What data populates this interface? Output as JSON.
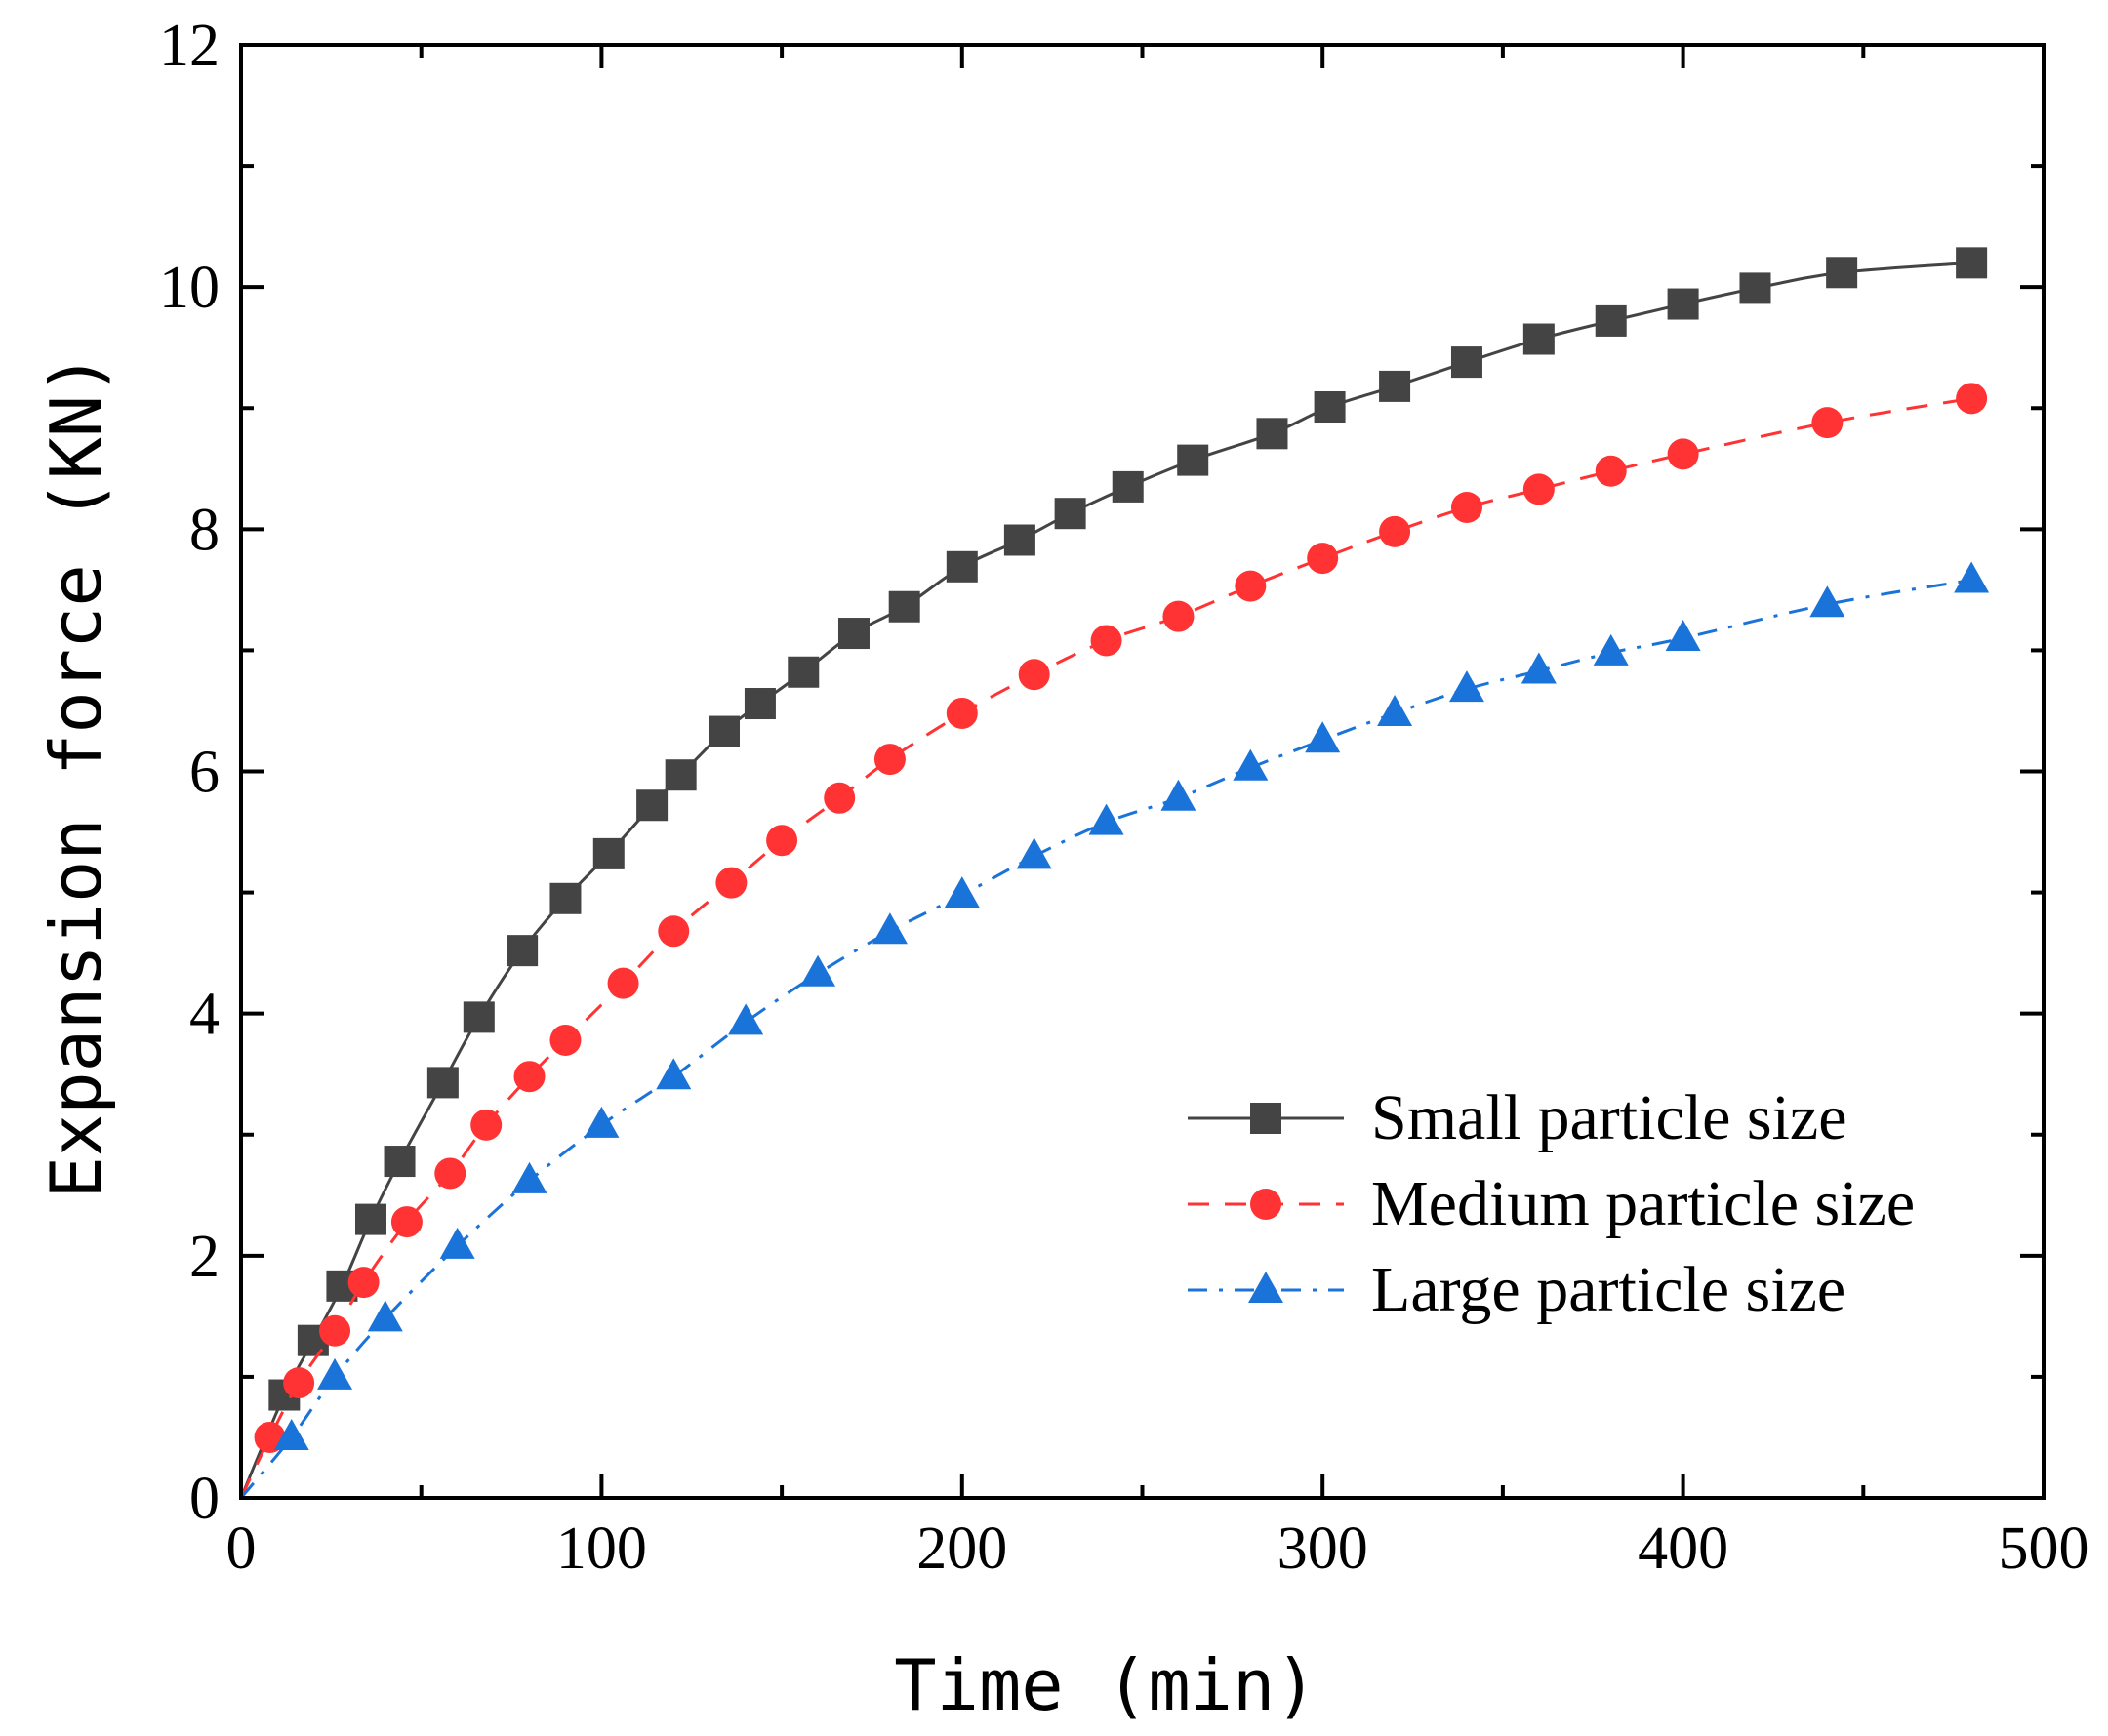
{
  "chart_data": {
    "type": "line",
    "xlabel": "Time (min)",
    "ylabel": "Expansion force (KN)",
    "xlim": [
      0,
      500
    ],
    "ylim": [
      0,
      12
    ],
    "xticks": [
      0,
      100,
      200,
      300,
      400,
      500
    ],
    "yticks": [
      0,
      2,
      4,
      6,
      8,
      10,
      12
    ],
    "grid": false,
    "legend_position": "bottom-right",
    "series": [
      {
        "name": "Small particle size",
        "marker": "square",
        "line_style": "solid",
        "color": "#444444",
        "x": [
          0,
          12,
          20,
          28,
          36,
          44,
          56,
          66,
          78,
          90,
          102,
          114,
          122,
          134,
          144,
          156,
          170,
          184,
          200,
          216,
          230,
          246,
          264,
          286,
          302,
          320,
          340,
          360,
          380,
          400,
          420,
          444,
          480
        ],
        "y": [
          0,
          0.85,
          1.3,
          1.75,
          2.3,
          2.78,
          3.43,
          3.97,
          4.52,
          4.95,
          5.32,
          5.72,
          5.97,
          6.33,
          6.56,
          6.82,
          7.14,
          7.36,
          7.69,
          7.91,
          8.13,
          8.35,
          8.57,
          8.79,
          9.01,
          9.18,
          9.38,
          9.57,
          9.72,
          9.86,
          9.99,
          10.12,
          10.2
        ]
      },
      {
        "name": "Medium particle size",
        "marker": "circle",
        "line_style": "dashed",
        "color": "#ff3333",
        "x": [
          0,
          8,
          16,
          26,
          34,
          46,
          58,
          68,
          80,
          90,
          106,
          120,
          136,
          150,
          166,
          180,
          200,
          220,
          240,
          260,
          280,
          300,
          320,
          340,
          360,
          380,
          400,
          440,
          480
        ],
        "y": [
          0,
          0.5,
          0.95,
          1.38,
          1.78,
          2.28,
          2.68,
          3.08,
          3.48,
          3.78,
          4.25,
          4.68,
          5.08,
          5.43,
          5.78,
          6.1,
          6.48,
          6.8,
          7.08,
          7.28,
          7.53,
          7.76,
          7.98,
          8.18,
          8.33,
          8.48,
          8.62,
          8.88,
          9.08
        ]
      },
      {
        "name": "Large particle size",
        "marker": "triangle",
        "line_style": "dash-dot",
        "color": "#1a73d9",
        "x": [
          0,
          14,
          26,
          40,
          60,
          80,
          100,
          120,
          140,
          160,
          180,
          200,
          220,
          240,
          260,
          280,
          300,
          320,
          340,
          360,
          380,
          400,
          440,
          480
        ],
        "y": [
          0,
          0.5,
          1.0,
          1.48,
          2.08,
          2.62,
          3.08,
          3.48,
          3.93,
          4.33,
          4.68,
          4.98,
          5.3,
          5.58,
          5.78,
          6.03,
          6.26,
          6.48,
          6.68,
          6.83,
          6.98,
          7.1,
          7.38,
          7.58
        ]
      }
    ]
  }
}
